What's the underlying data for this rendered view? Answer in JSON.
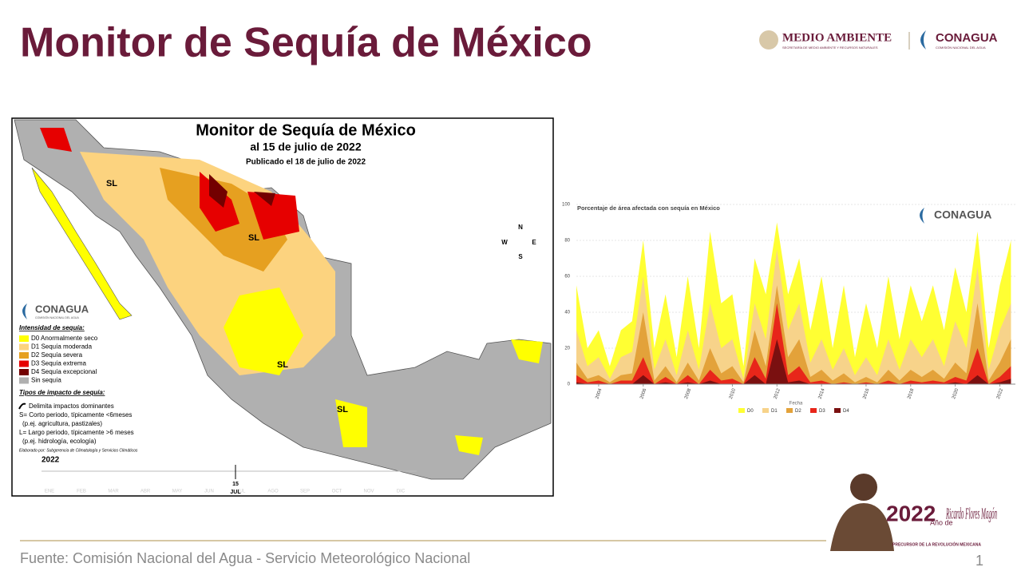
{
  "header": {
    "title": "Monitor de Sequía de México",
    "logo_left": "MEDIO AMBIENTE",
    "logo_left_sub": "SECRETARÍA DE MEDIO AMBIENTE Y RECURSOS NATURALES",
    "logo_right": "CONAGUA",
    "logo_right_sub": "COMISIÓN NACIONAL DEL AGUA"
  },
  "map": {
    "title": "Monitor de Sequía de México",
    "date": "al 15 de julio de 2022",
    "published": "Publicado el 18 de julio de 2022",
    "logo": "CONAGUA",
    "logo_sub": "COMISIÓN NACIONAL DEL AGUA",
    "legend_title": "Intensidad de sequía:",
    "legend": [
      {
        "label": "D0 Anormalmente seco",
        "color": "#ffff00"
      },
      {
        "label": "D1 Sequía moderada",
        "color": "#fcd37f"
      },
      {
        "label": "D2 Sequía severa",
        "color": "#e6a020"
      },
      {
        "label": "D3 Sequía extrema",
        "color": "#e60000"
      },
      {
        "label": "D4 Sequía excepcional",
        "color": "#730000"
      },
      {
        "label": "Sin sequía",
        "color": "#b0b0b0"
      }
    ],
    "impact_title": "Tipos de impacto de sequía:",
    "impact_lines": [
      "Delimita impactos dominantes",
      "S= Corto periodo, típicamente <6meses",
      "(p.ej. agricultura, pastizales)",
      "L= Largo periodo, típicamente >6 meses",
      "(p.ej. hidrología, ecología)"
    ],
    "credit": "Elaborado por: Subgerencia de Climatología y Servicios Climáticos",
    "labels": [
      "SL",
      "SL",
      "SL",
      "SL"
    ],
    "compass": [
      "N",
      "S",
      "E",
      "W"
    ],
    "year": "2022",
    "day": "15",
    "month": "JUL",
    "months": [
      "ENE",
      "FEB",
      "MAR",
      "ABR",
      "MAY",
      "JUN",
      "JUL",
      "AGO",
      "SEP",
      "OCT",
      "NOV",
      "DIC"
    ]
  },
  "chart_data": {
    "type": "area",
    "title": "Porcentaje de área afectada con sequía en México",
    "xlabel": "Fecha",
    "logo": "CONAGUA",
    "x": [
      2003.0,
      2003.5,
      2004.0,
      2004.5,
      2005.0,
      2005.5,
      2006.0,
      2006.5,
      2007.0,
      2007.5,
      2008.0,
      2008.5,
      2009.0,
      2009.5,
      2010.0,
      2010.5,
      2011.0,
      2011.5,
      2012.0,
      2012.5,
      2013.0,
      2013.5,
      2014.0,
      2014.5,
      2015.0,
      2015.5,
      2016.0,
      2016.5,
      2017.0,
      2017.5,
      2018.0,
      2018.5,
      2019.0,
      2019.5,
      2020.0,
      2020.5,
      2021.0,
      2021.5,
      2022.0,
      2022.5
    ],
    "xlim": [
      2003,
      2022.7
    ],
    "xticks": [
      2004,
      2006,
      2008,
      2010,
      2012,
      2014,
      2016,
      2018,
      2020,
      2022
    ],
    "ylim": [
      0,
      100
    ],
    "yticks": [
      0,
      20,
      40,
      60,
      80,
      100
    ],
    "grid": true,
    "series": [
      {
        "name": "D0",
        "color": "#ffff33",
        "values": [
          55,
          20,
          30,
          10,
          30,
          35,
          80,
          20,
          50,
          15,
          60,
          20,
          85,
          45,
          50,
          10,
          70,
          50,
          90,
          50,
          70,
          30,
          60,
          20,
          55,
          15,
          45,
          20,
          60,
          25,
          55,
          35,
          55,
          30,
          65,
          40,
          85,
          20,
          55,
          80
        ]
      },
      {
        "name": "D1",
        "color": "#f7d38a",
        "values": [
          30,
          10,
          15,
          3,
          15,
          18,
          60,
          8,
          25,
          5,
          30,
          8,
          45,
          20,
          25,
          3,
          45,
          25,
          75,
          30,
          45,
          12,
          25,
          8,
          20,
          5,
          15,
          5,
          25,
          8,
          25,
          15,
          25,
          10,
          35,
          20,
          65,
          8,
          30,
          45
        ]
      },
      {
        "name": "D2",
        "color": "#e3a23a",
        "values": [
          12,
          3,
          5,
          1,
          5,
          6,
          40,
          2,
          10,
          1,
          12,
          2,
          20,
          6,
          10,
          1,
          30,
          10,
          55,
          15,
          25,
          4,
          8,
          2,
          6,
          1,
          4,
          1,
          8,
          2,
          8,
          4,
          8,
          3,
          12,
          6,
          45,
          2,
          12,
          25
        ]
      },
      {
        "name": "D3",
        "color": "#e8261a",
        "values": [
          5,
          1,
          2,
          0,
          2,
          2,
          15,
          0,
          4,
          0,
          5,
          0,
          8,
          2,
          3,
          0,
          15,
          3,
          45,
          5,
          10,
          1,
          2,
          0,
          1,
          0,
          1,
          0,
          2,
          0,
          2,
          1,
          2,
          1,
          4,
          2,
          20,
          0,
          4,
          10
        ]
      },
      {
        "name": "D4",
        "color": "#7a1010",
        "values": [
          1,
          0,
          0,
          0,
          0,
          0,
          5,
          0,
          1,
          0,
          1,
          0,
          2,
          0,
          0,
          0,
          5,
          0,
          25,
          1,
          2,
          0,
          0,
          0,
          0,
          0,
          0,
          0,
          0,
          0,
          0,
          0,
          0,
          0,
          1,
          0,
          5,
          0,
          1,
          3
        ]
      }
    ]
  },
  "footer": {
    "source": "Fuente: Comisión Nacional del Agua - Servicio Meteorológico Nacional",
    "page": "1",
    "badge_year": "2022",
    "badge_text": "Año de",
    "badge_name": "Ricardo Flores Magón",
    "badge_sub": "PRECURSOR DE LA REVOLUCIÓN MEXICANA"
  }
}
